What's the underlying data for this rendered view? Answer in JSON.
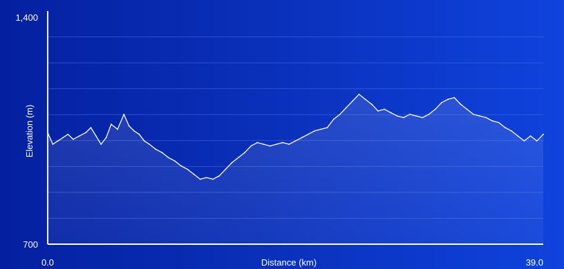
{
  "chart_data": {
    "type": "line",
    "title": "",
    "xlabel": "Distance (km)",
    "ylabel": "Elevation (m)",
    "xlim": [
      0.0,
      39.0
    ],
    "ylim": [
      700,
      1400
    ],
    "x_tick_labels": [
      "0.0",
      "39.0"
    ],
    "y_tick_labels": [
      "1,400",
      "700"
    ],
    "grid": "horizontal",
    "legend": "none",
    "colors": {
      "line": "#ffffff",
      "area_fill": "#ffffff",
      "grid": "#4a6fe0",
      "axis": "#ffffff"
    },
    "series": [
      {
        "x": [
          0.0,
          0.4,
          0.8,
          1.2,
          1.6,
          2.0,
          2.5,
          3.0,
          3.4,
          3.8,
          4.2,
          4.6,
          5.0,
          5.5,
          6.0,
          6.4,
          6.8,
          7.2,
          7.6,
          8.0,
          8.5,
          9.0,
          9.5,
          10.0,
          10.5,
          11.0,
          11.5,
          12.0,
          12.5,
          13.0,
          13.5,
          14.0,
          14.5,
          15.0,
          15.5,
          16.0,
          16.5,
          17.0,
          17.5,
          18.0,
          18.5,
          19.0,
          19.5,
          20.0,
          20.5,
          21.0,
          21.5,
          22.0,
          22.5,
          23.0,
          23.5,
          24.0,
          24.5,
          25.0,
          25.5,
          26.0,
          26.5,
          27.0,
          27.5,
          28.0,
          28.5,
          29.0,
          29.5,
          30.0,
          30.5,
          31.0,
          31.5,
          32.0,
          32.5,
          33.0,
          33.5,
          34.0,
          34.5,
          35.0,
          35.5,
          36.0,
          36.5,
          37.0,
          37.5,
          38.0,
          38.5,
          39.0
        ],
        "y": [
          1035,
          1000,
          1010,
          1020,
          1030,
          1015,
          1025,
          1035,
          1050,
          1025,
          1000,
          1020,
          1060,
          1045,
          1090,
          1055,
          1040,
          1030,
          1010,
          1000,
          985,
          975,
          960,
          950,
          935,
          925,
          910,
          895,
          900,
          895,
          905,
          925,
          945,
          960,
          975,
          995,
          1005,
          1000,
          995,
          1000,
          1005,
          1000,
          1010,
          1020,
          1030,
          1040,
          1045,
          1050,
          1075,
          1090,
          1110,
          1130,
          1150,
          1135,
          1120,
          1100,
          1105,
          1095,
          1085,
          1080,
          1090,
          1085,
          1080,
          1090,
          1105,
          1125,
          1135,
          1140,
          1120,
          1105,
          1090,
          1085,
          1080,
          1070,
          1065,
          1050,
          1040,
          1025,
          1010,
          1025,
          1010,
          1030
        ]
      }
    ]
  }
}
